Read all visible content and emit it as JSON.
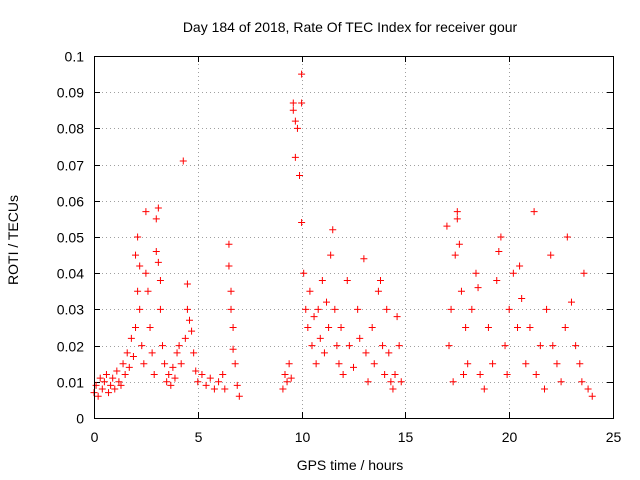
{
  "chart_data": {
    "type": "scatter",
    "title": "Day 184 of 2018, Rate Of TEC Index for receiver gour",
    "xlabel": "GPS time / hours",
    "ylabel": "ROTI / TECUs",
    "xlim": [
      0,
      25
    ],
    "ylim": [
      0,
      0.1
    ],
    "xticks": [
      "0",
      "5",
      "10",
      "15",
      "20",
      "25"
    ],
    "yticks": [
      "0",
      "0.01",
      "0.02",
      "0.03",
      "0.04",
      "0.05",
      "0.06",
      "0.07",
      "0.08",
      "0.09",
      "0.1"
    ],
    "grid": true,
    "marker": "plus",
    "color": "#ff0000",
    "series": [
      {
        "points": [
          [
            0.0,
            0.007
          ],
          [
            0.1,
            0.009
          ],
          [
            0.2,
            0.006
          ],
          [
            0.3,
            0.011
          ],
          [
            0.4,
            0.008
          ],
          [
            0.5,
            0.01
          ],
          [
            0.6,
            0.012
          ],
          [
            0.7,
            0.007
          ],
          [
            0.8,
            0.009
          ],
          [
            0.9,
            0.011
          ],
          [
            1.0,
            0.008
          ],
          [
            1.1,
            0.013
          ],
          [
            1.2,
            0.01
          ],
          [
            1.3,
            0.009
          ],
          [
            1.4,
            0.015
          ],
          [
            1.5,
            0.012
          ],
          [
            1.6,
            0.018
          ],
          [
            1.7,
            0.014
          ],
          [
            1.8,
            0.022
          ],
          [
            1.9,
            0.017
          ],
          [
            2.0,
            0.025
          ],
          [
            2.0,
            0.045
          ],
          [
            2.1,
            0.05
          ],
          [
            2.1,
            0.035
          ],
          [
            2.2,
            0.03
          ],
          [
            2.2,
            0.042
          ],
          [
            2.3,
            0.02
          ],
          [
            2.4,
            0.015
          ],
          [
            2.5,
            0.057
          ],
          [
            2.5,
            0.04
          ],
          [
            2.6,
            0.035
          ],
          [
            2.7,
            0.025
          ],
          [
            2.8,
            0.018
          ],
          [
            2.9,
            0.012
          ],
          [
            3.0,
            0.055
          ],
          [
            3.0,
            0.046
          ],
          [
            3.1,
            0.058
          ],
          [
            3.1,
            0.043
          ],
          [
            3.2,
            0.038
          ],
          [
            3.2,
            0.03
          ],
          [
            3.3,
            0.02
          ],
          [
            3.4,
            0.015
          ],
          [
            3.5,
            0.01
          ],
          [
            3.6,
            0.012
          ],
          [
            3.7,
            0.009
          ],
          [
            3.8,
            0.014
          ],
          [
            3.9,
            0.011
          ],
          [
            4.0,
            0.018
          ],
          [
            4.1,
            0.02
          ],
          [
            4.2,
            0.015
          ],
          [
            4.3,
            0.071
          ],
          [
            4.4,
            0.022
          ],
          [
            4.5,
            0.03
          ],
          [
            4.5,
            0.037
          ],
          [
            4.6,
            0.027
          ],
          [
            4.7,
            0.024
          ],
          [
            4.8,
            0.018
          ],
          [
            4.9,
            0.013
          ],
          [
            5.0,
            0.01
          ],
          [
            5.2,
            0.012
          ],
          [
            5.4,
            0.009
          ],
          [
            5.6,
            0.011
          ],
          [
            5.8,
            0.008
          ],
          [
            6.0,
            0.01
          ],
          [
            6.2,
            0.012
          ],
          [
            6.3,
            0.008
          ],
          [
            6.5,
            0.048
          ],
          [
            6.5,
            0.042
          ],
          [
            6.6,
            0.035
          ],
          [
            6.6,
            0.03
          ],
          [
            6.7,
            0.025
          ],
          [
            6.7,
            0.019
          ],
          [
            6.8,
            0.015
          ],
          [
            6.9,
            0.009
          ],
          [
            7.0,
            0.006
          ],
          [
            9.1,
            0.008
          ],
          [
            9.2,
            0.012
          ],
          [
            9.3,
            0.01
          ],
          [
            9.4,
            0.015
          ],
          [
            9.5,
            0.011
          ],
          [
            9.6,
            0.087
          ],
          [
            9.6,
            0.085
          ],
          [
            9.7,
            0.082
          ],
          [
            9.7,
            0.072
          ],
          [
            9.8,
            0.08
          ],
          [
            9.9,
            0.067
          ],
          [
            10.0,
            0.095
          ],
          [
            10.0,
            0.087
          ],
          [
            10.0,
            0.054
          ],
          [
            10.1,
            0.04
          ],
          [
            10.2,
            0.03
          ],
          [
            10.3,
            0.025
          ],
          [
            10.4,
            0.035
          ],
          [
            10.5,
            0.02
          ],
          [
            10.6,
            0.028
          ],
          [
            10.7,
            0.015
          ],
          [
            10.8,
            0.03
          ],
          [
            10.9,
            0.022
          ],
          [
            11.0,
            0.038
          ],
          [
            11.1,
            0.018
          ],
          [
            11.2,
            0.032
          ],
          [
            11.3,
            0.025
          ],
          [
            11.4,
            0.045
          ],
          [
            11.5,
            0.052
          ],
          [
            11.6,
            0.03
          ],
          [
            11.7,
            0.02
          ],
          [
            11.8,
            0.015
          ],
          [
            11.9,
            0.025
          ],
          [
            12.0,
            0.012
          ],
          [
            12.2,
            0.038
          ],
          [
            12.3,
            0.02
          ],
          [
            12.5,
            0.014
          ],
          [
            12.7,
            0.03
          ],
          [
            12.8,
            0.022
          ],
          [
            13.0,
            0.044
          ],
          [
            13.1,
            0.018
          ],
          [
            13.2,
            0.01
          ],
          [
            13.4,
            0.025
          ],
          [
            13.5,
            0.015
          ],
          [
            13.7,
            0.035
          ],
          [
            13.8,
            0.038
          ],
          [
            13.9,
            0.02
          ],
          [
            14.0,
            0.012
          ],
          [
            14.1,
            0.03
          ],
          [
            14.2,
            0.018
          ],
          [
            14.3,
            0.01
          ],
          [
            14.4,
            0.008
          ],
          [
            14.5,
            0.012
          ],
          [
            14.6,
            0.028
          ],
          [
            14.7,
            0.02
          ],
          [
            14.8,
            0.01
          ],
          [
            17.0,
            0.053
          ],
          [
            17.1,
            0.02
          ],
          [
            17.2,
            0.03
          ],
          [
            17.3,
            0.01
          ],
          [
            17.4,
            0.045
          ],
          [
            17.5,
            0.055
          ],
          [
            17.5,
            0.057
          ],
          [
            17.6,
            0.048
          ],
          [
            17.7,
            0.035
          ],
          [
            17.8,
            0.012
          ],
          [
            17.9,
            0.025
          ],
          [
            18.0,
            0.015
          ],
          [
            18.2,
            0.03
          ],
          [
            18.4,
            0.04
          ],
          [
            18.5,
            0.036
          ],
          [
            18.6,
            0.012
          ],
          [
            18.8,
            0.008
          ],
          [
            19.0,
            0.025
          ],
          [
            19.2,
            0.015
          ],
          [
            19.4,
            0.038
          ],
          [
            19.5,
            0.046
          ],
          [
            19.6,
            0.05
          ],
          [
            19.8,
            0.02
          ],
          [
            19.9,
            0.012
          ],
          [
            20.0,
            0.03
          ],
          [
            20.2,
            0.04
          ],
          [
            20.4,
            0.025
          ],
          [
            20.5,
            0.042
          ],
          [
            20.6,
            0.033
          ],
          [
            20.8,
            0.015
          ],
          [
            21.0,
            0.025
          ],
          [
            21.2,
            0.057
          ],
          [
            21.3,
            0.012
          ],
          [
            21.5,
            0.02
          ],
          [
            21.7,
            0.008
          ],
          [
            21.8,
            0.03
          ],
          [
            22.0,
            0.045
          ],
          [
            22.1,
            0.02
          ],
          [
            22.3,
            0.015
          ],
          [
            22.5,
            0.01
          ],
          [
            22.7,
            0.025
          ],
          [
            22.8,
            0.05
          ],
          [
            23.0,
            0.032
          ],
          [
            23.2,
            0.02
          ],
          [
            23.4,
            0.015
          ],
          [
            23.5,
            0.01
          ],
          [
            23.6,
            0.04
          ],
          [
            23.8,
            0.008
          ],
          [
            24.0,
            0.006
          ]
        ]
      }
    ]
  }
}
